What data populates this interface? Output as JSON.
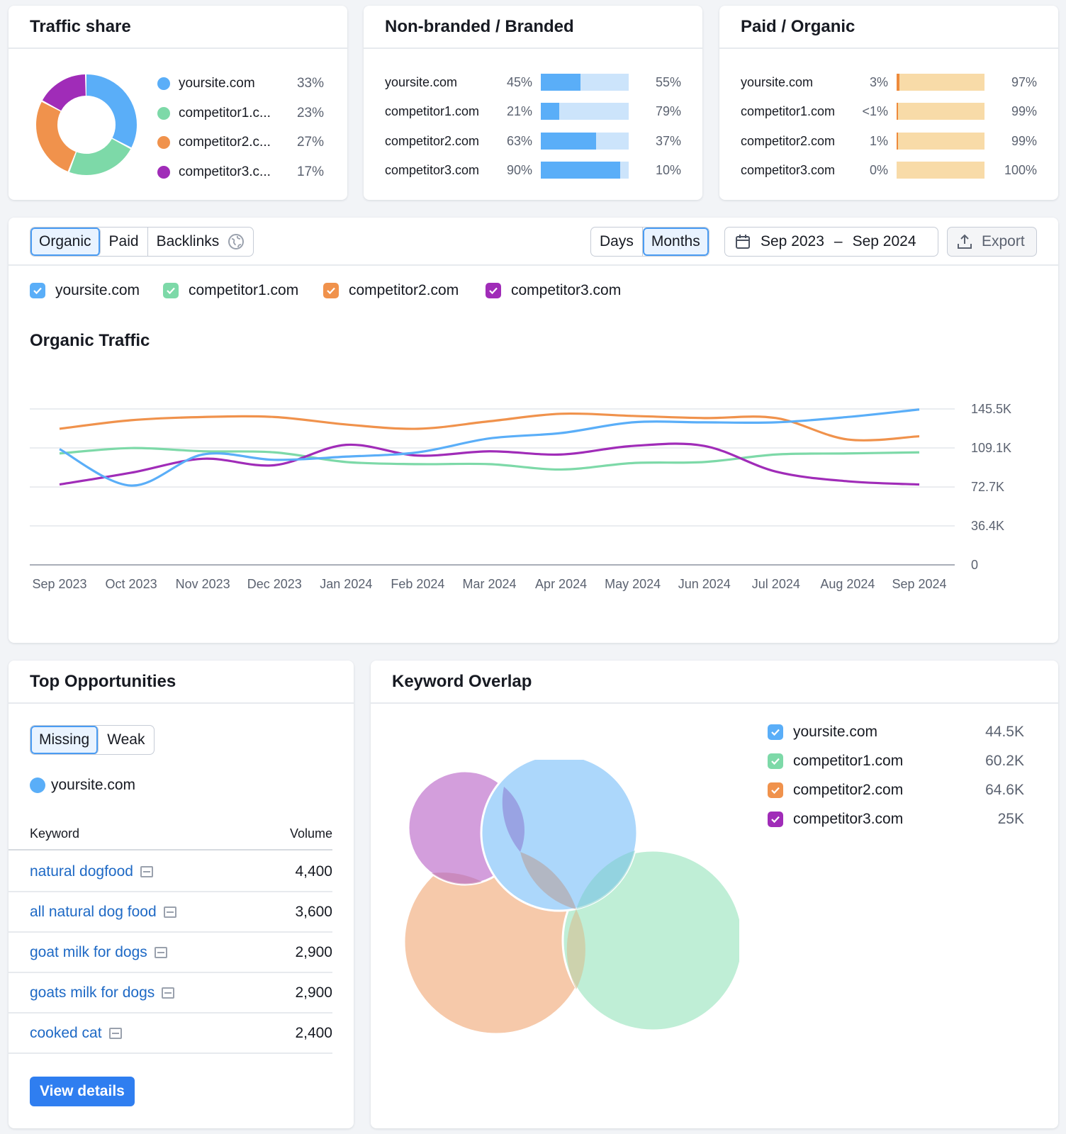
{
  "colors": {
    "yoursite": "#5aaef8",
    "competitor1": "#7dd9a8",
    "competitor2": "#f0924c",
    "competitor3": "#a02cb8"
  },
  "traffic_share": {
    "title": "Traffic share",
    "items": [
      {
        "name": "yoursite.com",
        "short": "yoursite.com",
        "pct": "33%",
        "value": 33,
        "color": "#5aaef8"
      },
      {
        "name": "competitor1.com",
        "short": "competitor1.c...",
        "pct": "23%",
        "value": 23,
        "color": "#7dd9a8"
      },
      {
        "name": "competitor2.com",
        "short": "competitor2.c...",
        "pct": "27%",
        "value": 27,
        "color": "#f0924c"
      },
      {
        "name": "competitor3.com",
        "short": "competitor3.c...",
        "pct": "17%",
        "value": 17,
        "color": "#a02cb8"
      }
    ]
  },
  "branded": {
    "title": "Non-branded / Branded",
    "rows": [
      {
        "name": "yoursite.com",
        "left": "45%",
        "right": "55%",
        "fill": 45
      },
      {
        "name": "competitor1.com",
        "left": "21%",
        "right": "79%",
        "fill": 21
      },
      {
        "name": "competitor2.com",
        "left": "63%",
        "right": "37%",
        "fill": 63
      },
      {
        "name": "competitor3.com",
        "left": "90%",
        "right": "10%",
        "fill": 90
      }
    ]
  },
  "paid_organic": {
    "title": "Paid / Organic",
    "rows": [
      {
        "name": "yoursite.com",
        "left": "3%",
        "right": "97%",
        "fill": 3
      },
      {
        "name": "competitor1.com",
        "left": "<1%",
        "right": "99%",
        "fill": 1
      },
      {
        "name": "competitor2.com",
        "left": "1%",
        "right": "99%",
        "fill": 1
      },
      {
        "name": "competitor3.com",
        "left": "0%",
        "right": "100%",
        "fill": 0
      }
    ]
  },
  "traffic_panel": {
    "tabs": [
      "Organic",
      "Paid",
      "Backlinks"
    ],
    "active_tab": "Organic",
    "periods": [
      "Days",
      "Months"
    ],
    "active_period": "Months",
    "date_from": "Sep 2023",
    "date_sep": "–",
    "date_to": "Sep 2024",
    "export_label": "Export",
    "legend": [
      "yoursite.com",
      "competitor1.com",
      "competitor2.com",
      "competitor3.com"
    ]
  },
  "chart_data": {
    "type": "line",
    "title": "Organic Traffic",
    "x": [
      "Sep 2023",
      "Oct 2023",
      "Nov 2023",
      "Dec 2023",
      "Jan 2024",
      "Feb 2024",
      "Mar 2024",
      "Apr 2024",
      "May 2024",
      "Jun 2024",
      "Jul 2024",
      "Aug 2024",
      "Sep 2024"
    ],
    "ylim": [
      0,
      145.5
    ],
    "yticks": [
      0,
      36.4,
      72.7,
      109.1,
      145.5
    ],
    "ytick_labels": [
      "0",
      "36.4K",
      "72.7K",
      "109.1K",
      "145.5K"
    ],
    "grid": true,
    "series": [
      {
        "name": "yoursite.com",
        "color": "#5aaef8",
        "values": [
          108,
          74,
          103,
          98,
          101,
          105,
          118,
          123,
          133,
          133,
          133,
          138,
          145
        ]
      },
      {
        "name": "competitor1.com",
        "color": "#7dd9a8",
        "values": [
          104,
          109,
          106,
          105,
          96,
          94,
          94,
          89,
          95,
          96,
          103,
          104,
          105
        ]
      },
      {
        "name": "competitor2.com",
        "color": "#f0924c",
        "values": [
          127,
          135,
          138,
          138,
          131,
          127,
          134,
          141,
          139,
          137,
          137,
          117,
          120
        ]
      },
      {
        "name": "competitor3.com",
        "color": "#a02cb8",
        "values": [
          75,
          86,
          99,
          93,
          112,
          102,
          106,
          103,
          111,
          111,
          87,
          78,
          75
        ]
      }
    ]
  },
  "opportunities": {
    "title": "Top Opportunities",
    "tabs": [
      "Missing",
      "Weak"
    ],
    "active_tab": "Missing",
    "site": "yoursite.com",
    "col_keyword": "Keyword",
    "col_volume": "Volume",
    "rows": [
      {
        "keyword": "natural dogfood",
        "volume": "4,400"
      },
      {
        "keyword": "all natural dog food",
        "volume": "3,600"
      },
      {
        "keyword": "goat milk for dogs",
        "volume": "2,900"
      },
      {
        "keyword": "goats milk for dogs",
        "volume": "2,900"
      },
      {
        "keyword": "cooked cat",
        "volume": "2,400"
      }
    ],
    "button_label": "View details"
  },
  "overlap": {
    "title": "Keyword Overlap",
    "items": [
      {
        "name": "yoursite.com",
        "value": "44.5K",
        "color": "#5aaef8"
      },
      {
        "name": "competitor1.com",
        "value": "60.2K",
        "color": "#7dd9a8"
      },
      {
        "name": "competitor2.com",
        "value": "64.6K",
        "color": "#f0924c"
      },
      {
        "name": "competitor3.com",
        "value": "25K",
        "color": "#a02cb8"
      }
    ]
  }
}
